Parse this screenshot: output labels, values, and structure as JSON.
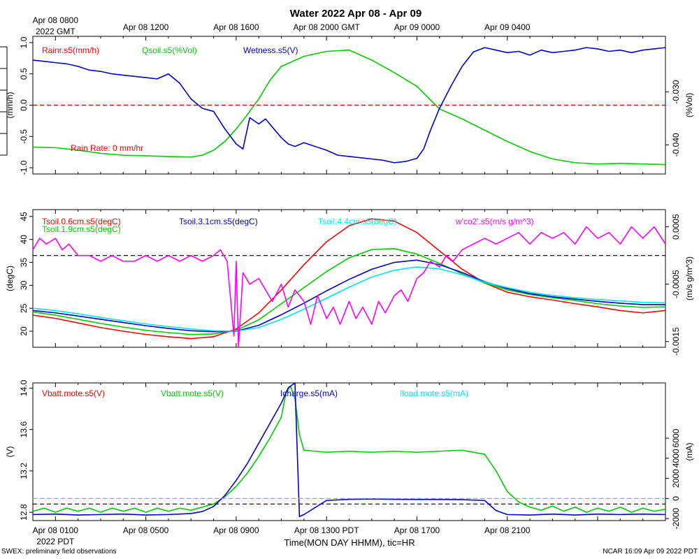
{
  "page": {
    "title": "Water 2022 Apr 08 - Apr 09",
    "footer_left": "SWEX: preliminary field observations",
    "footer_right": "NCAR 16:09 Apr 09 2022 PDT",
    "xlabel": "Time(MON DAY HHMM), tic=HR"
  },
  "time_axis": {
    "range_hours": [
      0,
      28
    ],
    "top_ticks": [
      {
        "hour": 1,
        "label": "Apr 08 0800",
        "sublabel": "2022 GMT"
      },
      {
        "hour": 5,
        "label": "Apr 08 1200"
      },
      {
        "hour": 9,
        "label": "Apr 08 1600"
      },
      {
        "hour": 13,
        "label": "Apr 08 2000 GMT"
      },
      {
        "hour": 17,
        "label": "Apr 09 0000"
      },
      {
        "hour": 21,
        "label": "Apr 09 0400"
      }
    ],
    "bottom_ticks": [
      {
        "hour": 1,
        "label": "Apr 08 0100",
        "sublabel": "2022 PDT"
      },
      {
        "hour": 5,
        "label": "Apr 08 0500"
      },
      {
        "hour": 9,
        "label": "Apr 08 0900"
      },
      {
        "hour": 13,
        "label": "Apr 08 1300 PDT"
      },
      {
        "hour": 17,
        "label": "Apr 08 1700"
      },
      {
        "hour": 21,
        "label": "Apr 08 2100"
      }
    ]
  },
  "chart_data": [
    {
      "type": "line",
      "name": "water-panel",
      "ylabel": "(mm/h)",
      "ylim": [
        -1.1,
        1.1
      ],
      "yticks": [
        -1.0,
        -0.5,
        0.0,
        0.5,
        1.0
      ],
      "ytick_labels": [
        "-1.0",
        "-0.5",
        "0.0",
        "0.5",
        "1.0"
      ],
      "y2label": "(%Vol)",
      "y2lim": [
        -0.0455,
        -0.0195
      ],
      "y2ticks": [
        -0.04,
        -0.03
      ],
      "y2tick_labels": [
        "-0.040",
        "-0.030"
      ],
      "reference_line": {
        "y": 0.0,
        "color": "#ff0000"
      },
      "annotation": "Rain Rate: 0 mm/hr",
      "legend": [
        {
          "label": "Rainr.s5(mm/h)",
          "color": "#ff0000"
        },
        {
          "label": "Qsoil.s5(%Vol)",
          "color": "#00cc00"
        },
        {
          "label": "Wetness.s5(V)",
          "color": "#0000cc"
        }
      ],
      "series": [
        {
          "name": "Rainr.s5(mm/h)",
          "color": "#ff0000",
          "axis": "y",
          "dashed": true,
          "x": [
            0,
            28
          ],
          "values": [
            0.0,
            0.0
          ]
        },
        {
          "name": "Qsoil.s5(%Vol)",
          "color": "#00cc00",
          "axis": "y",
          "x": [
            0,
            1,
            2,
            3,
            4,
            5,
            6,
            7,
            7.5,
            8,
            8.5,
            9,
            9.5,
            10,
            10.5,
            11,
            11.5,
            12,
            12.5,
            13,
            14,
            15,
            16,
            17,
            17.5,
            18,
            19,
            20,
            21,
            22,
            23,
            24,
            25,
            26,
            27,
            28
          ],
          "values": [
            -0.67,
            -0.68,
            -0.72,
            -0.77,
            -0.8,
            -0.81,
            -0.82,
            -0.83,
            -0.8,
            -0.72,
            -0.58,
            -0.38,
            -0.15,
            0.1,
            0.4,
            0.62,
            0.7,
            0.78,
            0.82,
            0.86,
            0.88,
            0.72,
            0.52,
            0.3,
            0.12,
            -0.06,
            -0.22,
            -0.4,
            -0.58,
            -0.74,
            -0.86,
            -0.92,
            -0.94,
            -0.93,
            -0.94,
            -0.95
          ]
        },
        {
          "name": "Wetness.s5(V)",
          "color": "#0000cc",
          "axis": "y",
          "x": [
            0,
            0.5,
            1,
            1.5,
            2,
            2.5,
            3,
            3.5,
            4,
            4.5,
            5,
            5.5,
            6,
            6.5,
            7,
            7.5,
            8,
            8.5,
            9,
            9.3,
            9.6,
            10,
            10.3,
            10.6,
            11,
            11.3,
            11.6,
            12,
            12.5,
            13,
            13.5,
            14,
            14.5,
            15,
            15.5,
            16,
            16.5,
            17,
            17.3,
            17.6,
            18,
            18.5,
            19,
            19.5,
            20,
            20.5,
            21,
            21.5,
            22,
            22.5,
            23,
            23.5,
            24,
            24.5,
            25,
            25.5,
            26,
            26.5,
            27,
            27.5,
            28
          ],
          "values": [
            0.72,
            0.7,
            0.68,
            0.66,
            0.62,
            0.56,
            0.54,
            0.5,
            0.48,
            0.46,
            0.44,
            0.42,
            0.5,
            0.35,
            0.1,
            -0.05,
            -0.1,
            -0.38,
            -0.62,
            -0.7,
            -0.2,
            -0.3,
            -0.22,
            -0.35,
            -0.52,
            -0.62,
            -0.66,
            -0.6,
            -0.66,
            -0.72,
            -0.8,
            -0.82,
            -0.84,
            -0.86,
            -0.88,
            -0.92,
            -0.9,
            -0.85,
            -0.7,
            -0.4,
            -0.05,
            0.3,
            0.62,
            0.85,
            0.92,
            0.88,
            0.84,
            0.86,
            0.8,
            0.88,
            0.84,
            0.86,
            0.88,
            0.92,
            0.9,
            0.86,
            0.88,
            0.84,
            0.88,
            0.9,
            0.92
          ]
        }
      ]
    },
    {
      "type": "line",
      "name": "temperature-panel",
      "ylabel": "(degC)",
      "ylim": [
        16.5,
        46.5
      ],
      "yticks": [
        20,
        25,
        30,
        35,
        40,
        45
      ],
      "ytick_labels": [
        "20",
        "25",
        "30",
        "35",
        "40",
        "45"
      ],
      "y2label": "(m/s g/m^3)",
      "y2lim": [
        -0.0016,
        0.0008
      ],
      "y2ticks": [
        -0.0015,
        -0.0005,
        0.0005
      ],
      "y2tick_labels": [
        "-0.0015",
        "-0.0005",
        "0.0005"
      ],
      "reference_line": {
        "y": 36.5,
        "color": "#000000"
      },
      "legend": [
        {
          "label": "Tsoil.0.6cm.s5(degC)",
          "color": "#ff0000"
        },
        {
          "label": "Tsoil.1.9cm.s5(degC)",
          "color": "#00cc00"
        },
        {
          "label": "Tsoil.3.1cm.s5(degC)",
          "color": "#0000cc"
        },
        {
          "label": "Tsoil.4.4cm.s5(degC)",
          "color": "#00e5ff"
        },
        {
          "label": "w'co2'.s5(m/s g/m^3)",
          "color": "#ff00ff"
        }
      ],
      "series": [
        {
          "name": "Tsoil.0.6cm.s5(degC)",
          "color": "#ff0000",
          "axis": "y",
          "x": [
            0,
            1,
            2,
            3,
            4,
            5,
            6,
            7,
            8,
            9,
            10,
            11,
            12,
            13,
            14,
            15,
            16,
            17,
            18,
            19,
            20,
            21,
            22,
            23,
            24,
            25,
            26,
            27,
            28
          ],
          "values": [
            23.5,
            22.8,
            21.8,
            20.8,
            20.0,
            19.3,
            18.8,
            18.4,
            18.8,
            20.5,
            24.0,
            29.0,
            34.5,
            39.5,
            43.0,
            44.5,
            44.0,
            41.5,
            37.5,
            33.5,
            30.5,
            28.5,
            27.5,
            26.8,
            26.0,
            25.3,
            24.5,
            24.0,
            24.5
          ]
        },
        {
          "name": "Tsoil.1.9cm.s5(degC)",
          "color": "#00cc00",
          "axis": "y",
          "x": [
            0,
            1,
            2,
            3,
            4,
            5,
            6,
            7,
            8,
            9,
            10,
            11,
            12,
            13,
            14,
            15,
            16,
            17,
            18,
            19,
            20,
            21,
            22,
            23,
            24,
            25,
            26,
            27,
            28
          ],
          "values": [
            24.2,
            23.5,
            22.6,
            21.7,
            20.9,
            20.2,
            19.7,
            19.3,
            19.4,
            20.2,
            22.5,
            26.0,
            29.5,
            33.0,
            36.0,
            37.8,
            38.0,
            36.8,
            34.8,
            32.5,
            30.5,
            29.0,
            28.0,
            27.3,
            26.7,
            26.0,
            25.5,
            25.2,
            25.3
          ]
        },
        {
          "name": "Tsoil.3.1cm.s5(degC)",
          "color": "#0000cc",
          "axis": "y",
          "x": [
            0,
            1,
            2,
            3,
            4,
            5,
            6,
            7,
            8,
            9,
            10,
            11,
            12,
            13,
            14,
            15,
            16,
            17,
            18,
            19,
            20,
            21,
            22,
            23,
            24,
            25,
            26,
            27,
            28
          ],
          "values": [
            24.5,
            24.0,
            23.3,
            22.6,
            21.9,
            21.2,
            20.6,
            20.1,
            19.9,
            20.0,
            21.3,
            23.6,
            26.1,
            28.8,
            31.3,
            33.5,
            35.0,
            35.5,
            34.5,
            32.8,
            30.8,
            29.3,
            28.2,
            27.5,
            27.0,
            26.5,
            26.1,
            25.8,
            25.8
          ]
        },
        {
          "name": "Tsoil.4.4cm.s5(degC)",
          "color": "#00e5ff",
          "axis": "y",
          "x": [
            0,
            1,
            2,
            3,
            4,
            5,
            6,
            7,
            8,
            9,
            10,
            11,
            12,
            13,
            14,
            15,
            16,
            17,
            18,
            19,
            20,
            21,
            22,
            23,
            24,
            25,
            26,
            27,
            28
          ],
          "values": [
            25.0,
            24.5,
            23.8,
            23.0,
            22.3,
            21.6,
            21.0,
            20.5,
            20.1,
            20.0,
            20.8,
            22.6,
            24.8,
            27.2,
            29.6,
            31.8,
            33.3,
            34.0,
            33.6,
            32.3,
            30.7,
            29.5,
            28.5,
            27.8,
            27.3,
            26.9,
            26.6,
            26.3,
            26.2
          ]
        },
        {
          "name": "w'co2'.s5(m/s g/m^3)",
          "color": "#ff00ff",
          "axis": "y",
          "x": [
            0,
            0.3,
            0.6,
            1,
            1.3,
            1.6,
            2,
            2.5,
            3,
            3.5,
            4,
            4.5,
            5,
            5.5,
            6,
            6.5,
            7,
            7.5,
            8,
            8.3,
            8.6,
            8.9,
            9.0,
            9.1,
            9.3,
            9.6,
            10,
            10.3,
            10.6,
            11,
            11.3,
            11.6,
            12,
            12.3,
            12.6,
            13,
            13.3,
            13.6,
            14,
            14.3,
            14.6,
            15,
            15.3,
            15.6,
            16,
            16.3,
            16.6,
            17,
            17.3,
            17.6,
            18,
            18.3,
            18.6,
            19,
            19.5,
            20,
            20.5,
            21,
            21.5,
            22,
            22.5,
            23,
            23.5,
            24,
            24.5,
            25,
            25.5,
            26,
            26.5,
            27,
            27.5,
            28
          ],
          "values": [
            0.0001,
            0.0003,
            0.0002,
            0.0003,
            0.0001,
            0.0002,
            0.0,
            0.0,
            -0.0001,
            0.0,
            -0.0001,
            -0.0001,
            0.0,
            -0.0001,
            0.0,
            -0.0001,
            0.0,
            -0.0001,
            0.0,
            0.0001,
            -0.0001,
            -0.0014,
            -0.0001,
            -0.0016,
            -0.0003,
            -0.0005,
            -0.0004,
            -0.0006,
            -0.0008,
            -0.0005,
            -0.0009,
            -0.0006,
            -0.0008,
            -0.0012,
            -0.0007,
            -0.0011,
            -0.0009,
            -0.0012,
            -0.0008,
            -0.0011,
            -0.0009,
            -0.0012,
            -0.0008,
            -0.001,
            -0.0007,
            -0.0006,
            -0.0008,
            -0.0004,
            -0.0003,
            -0.0001,
            -0.0002,
            0.0,
            -0.0001,
            0.0001,
            0.0002,
            0.0003,
            0.0002,
            0.0003,
            0.0004,
            0.0002,
            0.0004,
            0.0003,
            0.0004,
            0.0002,
            0.0005,
            0.0003,
            0.0004,
            0.0002,
            0.0005,
            0.0003,
            0.0005,
            0.0002
          ]
        }
      ]
    },
    {
      "type": "line",
      "name": "battery-panel",
      "ylabel": "(V)",
      "ylim": [
        12.72,
        14.05
      ],
      "yticks": [
        12.8,
        13.2,
        13.6,
        14.0
      ],
      "ytick_labels": [
        "12.8",
        "13.2",
        "13.6",
        "14.0"
      ],
      "y2label": "(mA)",
      "y2lim": [
        -2200,
        11500
      ],
      "y2ticks": [
        -2000,
        0,
        2000,
        4000,
        6000
      ],
      "y2tick_labels": [
        "-2000",
        "0",
        "2000",
        "4000",
        "6000"
      ],
      "reference_line": {
        "y": 12.88,
        "color": "#00cccc"
      },
      "legend": [
        {
          "label": "Vbatt.mote.s5(V)",
          "color": "#ff0000"
        },
        {
          "label": "Vbatt.mote.s5(V)",
          "color": "#00cc00"
        },
        {
          "label": "Icharge.s5(mA)",
          "color": "#0000cc"
        },
        {
          "label": "Iload.mote.s5(mA)",
          "color": "#00e5ff"
        }
      ],
      "series": [
        {
          "name": "Vbatt.mote.s5(V)",
          "color": "#00cc00",
          "axis": "y",
          "x": [
            0,
            0.5,
            1,
            1.5,
            2,
            2.5,
            3,
            3.5,
            4,
            4.5,
            5,
            5.5,
            6,
            6.5,
            7,
            7.5,
            8,
            8.5,
            9,
            9.5,
            10,
            10.5,
            11,
            11.2,
            11.4,
            11.6,
            11.8,
            12,
            13,
            14,
            15,
            16,
            17,
            18,
            19,
            20,
            20.5,
            21,
            21.5,
            22,
            22.5,
            23,
            23.5,
            24,
            24.5,
            25,
            25.5,
            26,
            26.5,
            27,
            27.5,
            28
          ],
          "values": [
            12.81,
            12.84,
            12.8,
            12.84,
            12.81,
            12.84,
            12.8,
            12.84,
            12.81,
            12.84,
            12.8,
            12.84,
            12.81,
            12.84,
            12.82,
            12.85,
            12.88,
            12.95,
            13.05,
            13.18,
            13.34,
            13.52,
            13.72,
            13.95,
            14.02,
            13.9,
            13.55,
            13.4,
            13.38,
            13.39,
            13.38,
            13.39,
            13.38,
            13.39,
            13.4,
            13.36,
            13.2,
            13.0,
            12.9,
            12.85,
            12.82,
            12.86,
            12.81,
            12.85,
            12.8,
            12.84,
            12.81,
            12.85,
            12.8,
            12.84,
            12.81,
            12.83
          ]
        },
        {
          "name": "Icharge.s5(mA)",
          "color": "#0000cc",
          "axis": "y2",
          "x": [
            0,
            1,
            2,
            3,
            4,
            5,
            6,
            7,
            7.5,
            8,
            8.5,
            9,
            9.5,
            10,
            10.5,
            11,
            11.3,
            11.6,
            11.8,
            12,
            13,
            14,
            15,
            16,
            17,
            18,
            19,
            20,
            20.5,
            21,
            22,
            23,
            24,
            25,
            26,
            27,
            28
          ],
          "values": [
            -1600,
            -1550,
            -1650,
            -1600,
            -1550,
            -1650,
            -1600,
            -1500,
            -1300,
            -800,
            300,
            1800,
            3500,
            5500,
            7500,
            9500,
            11000,
            11500,
            -1800,
            -1600,
            -200,
            -80,
            -50,
            -80,
            -100,
            -100,
            -120,
            -200,
            -1200,
            -1600,
            -1650,
            -1550,
            -1650,
            -1550,
            -1600,
            -1550,
            -1600
          ]
        },
        {
          "name": "Iload.mote.s5(mA)",
          "color": "#00e5ff",
          "axis": "y2",
          "dashed": true,
          "x": [
            0,
            28
          ],
          "values": [
            0,
            0
          ]
        }
      ]
    }
  ]
}
